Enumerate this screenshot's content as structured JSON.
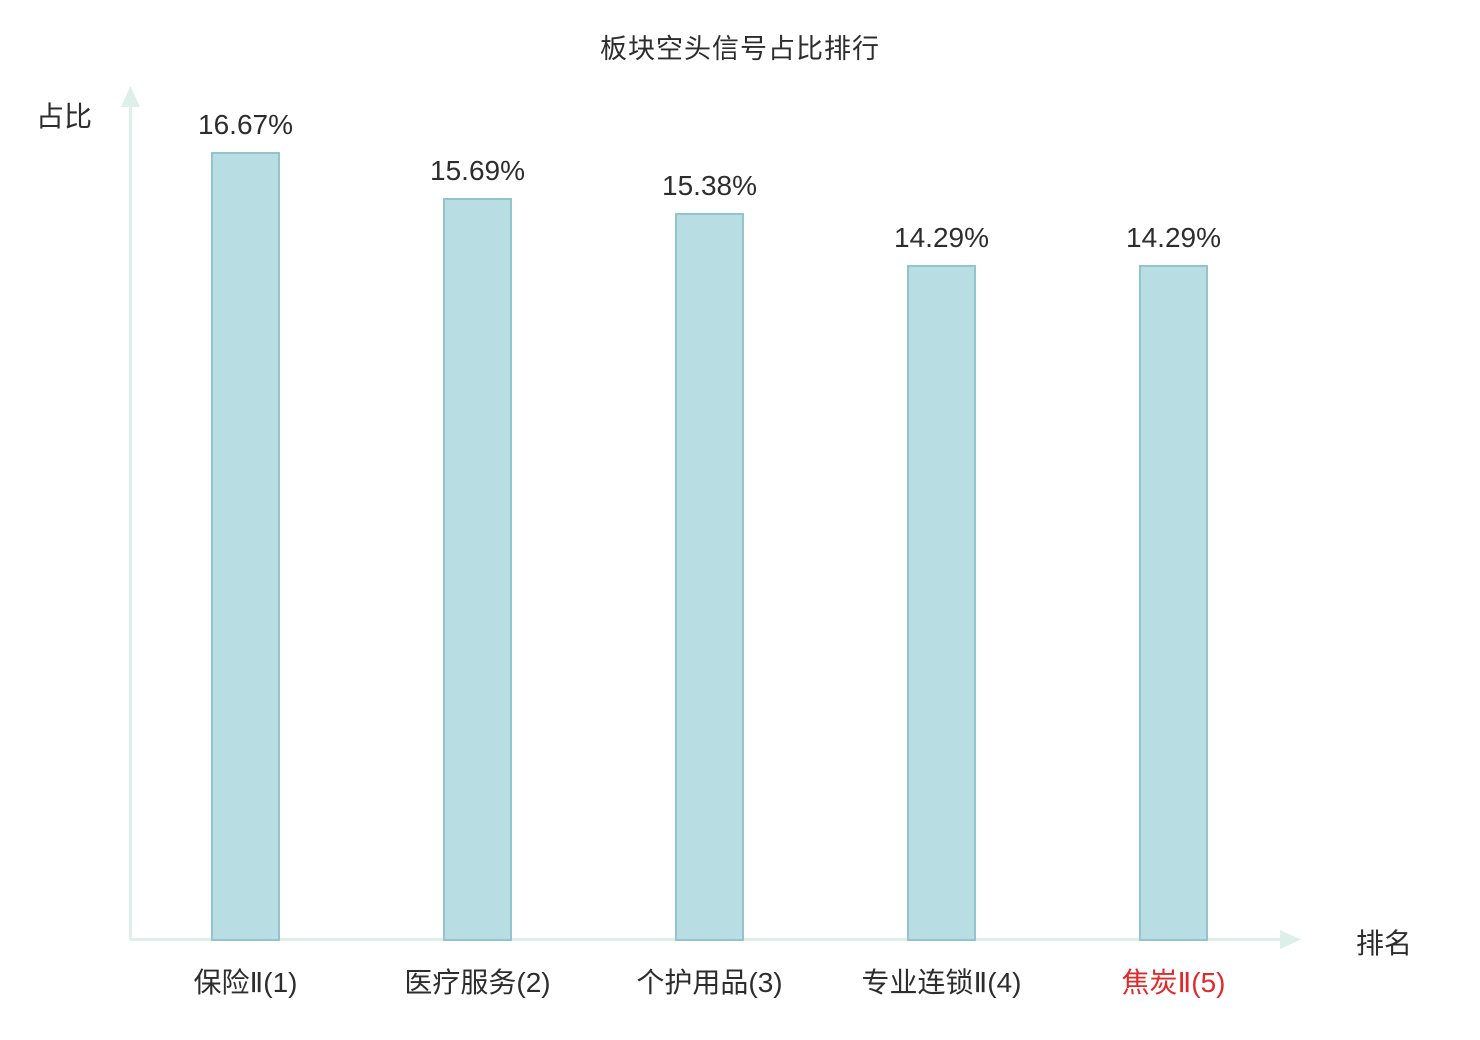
{
  "chart_data": {
    "type": "bar",
    "title": "板块空头信号占比排行",
    "xlabel": "排名",
    "ylabel": "占比",
    "categories": [
      "保险Ⅱ(1)",
      "医疗服务(2)",
      "个护用品(3)",
      "专业连锁Ⅱ(4)",
      "焦炭Ⅱ(5)"
    ],
    "values": [
      16.67,
      15.69,
      15.38,
      14.29,
      14.29
    ],
    "value_labels": [
      "16.67%",
      "15.69%",
      "15.38%",
      "14.29%",
      "14.29%"
    ],
    "highlight_index": 4,
    "highlight_color": "#e02a2a",
    "bar_fill": "#b8dde3",
    "bar_border": "#93c4cd",
    "axis_color": "#ddefe9",
    "text_color": "#2d2d2d",
    "ylim": [
      0,
      18
    ],
    "grid": false,
    "legend": null
  }
}
